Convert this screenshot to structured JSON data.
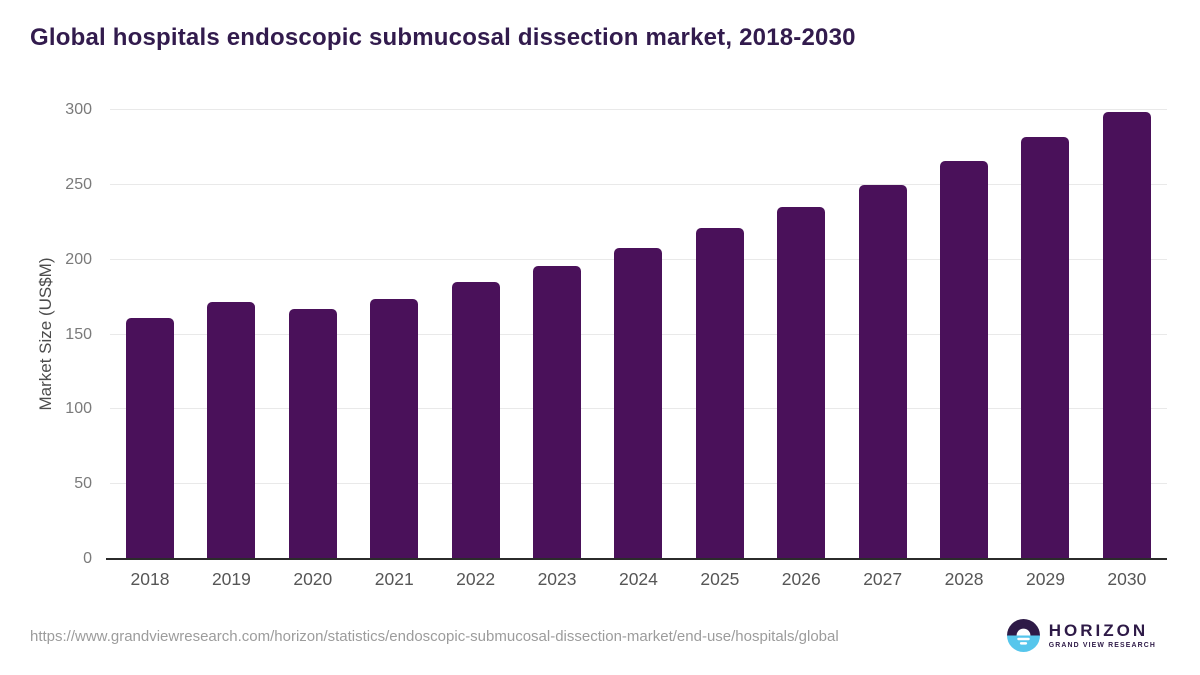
{
  "title": "Global hospitals endoscopic submucosal dissection market, 2018-2030",
  "footer": {
    "source_url": "https://www.grandviewresearch.com/horizon/statistics/endoscopic-submucosal-dissection-market/end-use/hospitals/global"
  },
  "logo": {
    "name": "HORIZON",
    "subtitle": "GRAND VIEW RESEARCH",
    "icon": "horizon-sun-over-water-icon",
    "color_dark": "#2e1a47",
    "color_blue": "#56c6ec"
  },
  "colors": {
    "bar": "#4a115a",
    "title_text": "#321b4d",
    "gridline": "#e9e9e9",
    "baseline": "#2b2b2b",
    "tick_text": "#7a7a7a",
    "x_label_text": "#565656",
    "y_axis_title_text": "#4c4c4c",
    "url_text": "#9c9c9c"
  },
  "chart_data": {
    "type": "bar",
    "title": "Global hospitals endoscopic submucosal dissection market, 2018-2030",
    "categories": [
      "2018",
      "2019",
      "2020",
      "2021",
      "2022",
      "2023",
      "2024",
      "2025",
      "2026",
      "2027",
      "2028",
      "2029",
      "2030"
    ],
    "values": [
      161,
      172,
      167,
      174,
      185,
      196,
      208,
      221,
      235,
      250,
      266,
      282,
      299
    ],
    "xlabel": "",
    "ylabel": "Market Size (US$M)",
    "ylim": [
      0,
      300
    ],
    "yticks": [
      0,
      50,
      100,
      150,
      200,
      250,
      300
    ],
    "grid": "horizontal",
    "legend": "none",
    "bar_color": "#4a115a"
  }
}
